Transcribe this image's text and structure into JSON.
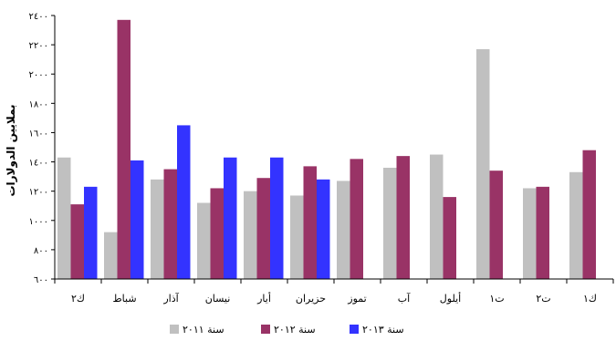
{
  "chart_data": {
    "type": "bar",
    "ylabel": "بملايين الدولارات",
    "ylim": [
      600,
      2400
    ],
    "yticks": [
      600,
      800,
      1000,
      1200,
      1400,
      1600,
      1800,
      2000,
      2200,
      2400
    ],
    "ytick_labels": [
      "٦٠٠",
      "٨٠٠",
      "١٠٠٠",
      "١٢٠٠",
      "١٤٠٠",
      "١٦٠٠",
      "١٨٠٠",
      "٢٠٠٠",
      "٢٢٠٠",
      "٢٤٠٠"
    ],
    "categories": [
      "ك٢",
      "شباط",
      "آذار",
      "نيسان",
      "أيار",
      "حزيران",
      "تموز",
      "آب",
      "أيلول",
      "ت١",
      "ت٢",
      "ك١"
    ],
    "series": [
      {
        "name": "سنة ٢٠١١",
        "color": "#c0c0c0",
        "values": [
          1430,
          920,
          1280,
          1120,
          1200,
          1170,
          1270,
          1360,
          1450,
          2170,
          1220,
          1330
        ]
      },
      {
        "name": "سنة ٢٠١٢",
        "color": "#993366",
        "values": [
          1110,
          2370,
          1350,
          1220,
          1290,
          1370,
          1420,
          1440,
          1160,
          1340,
          1230,
          1480
        ]
      },
      {
        "name": "سنة ٢٠١٣",
        "color": "#3333ff",
        "values": [
          1230,
          1410,
          1650,
          1430,
          1430,
          1280,
          null,
          null,
          null,
          null,
          null,
          null
        ]
      }
    ],
    "grid": false,
    "legend_position": "bottom"
  }
}
